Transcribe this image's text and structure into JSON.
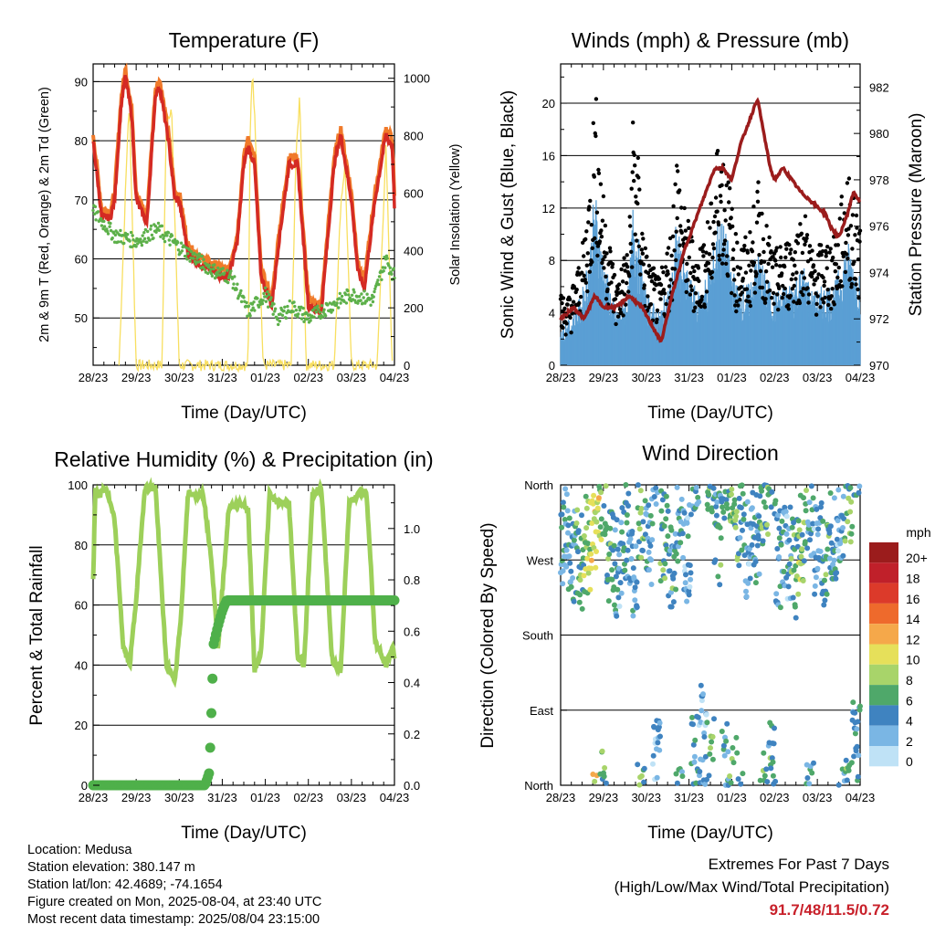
{
  "x_ticks": [
    "28/23",
    "29/23",
    "30/23",
    "31/23",
    "01/23",
    "02/23",
    "03/23",
    "04/23"
  ],
  "temperature": {
    "title": "Temperature (F)",
    "xlabel": "Time (Day/UTC)",
    "ylabel_left": "2m & 9m T (Red, Orange) & 2m Td (Green)",
    "ylabel_right": "Solar Insolation (Yellow)"
  },
  "winds": {
    "title": "Winds (mph) & Pressure (mb)",
    "xlabel": "Time (Day/UTC)",
    "ylabel_left": "Sonic Wind & Gust (Blue, Black)",
    "ylabel_right": "Station Pressure (Maroon)"
  },
  "humidity": {
    "title": "Relative Humidity (%) & Precipitation (in)",
    "xlabel": "Time (Day/UTC)",
    "ylabel_left": "Percent & Total Rainfall"
  },
  "direction": {
    "title": "Wind Direction",
    "xlabel": "Time (Day/UTC)",
    "ylabel_left": "Direction (Colored By Speed)",
    "y_labels": [
      "North",
      "West",
      "South",
      "East",
      "North"
    ],
    "colorbar_title": "mph",
    "colorbar_labels": [
      "20+",
      "18",
      "16",
      "14",
      "12",
      "10",
      "8",
      "6",
      "4",
      "2",
      "0"
    ],
    "colorbar_colors": [
      "#9b1c1c",
      "#c0202a",
      "#dc3a2a",
      "#ee6a2c",
      "#f5a84a",
      "#e6e05a",
      "#a8d46a",
      "#4fa86a",
      "#3f83c0",
      "#7ab6e4",
      "#bfe2f6"
    ]
  },
  "info": {
    "location": "Location: Medusa",
    "elevation": "Station elevation: 380.147 m",
    "latlon": "Station lat/lon: 42.4689; -74.1654",
    "created": "Figure created on Mon, 2025-08-04, at 23:40 UTC",
    "recent": "Most recent data timestamp: 2025/08/04 23:15:00"
  },
  "extremes": {
    "line1": "Extremes For Past 7 Days",
    "line2": "(High/Low/Max Wind/Total Precipitation)",
    "values": "91.7/48/11.5/0.72"
  },
  "colors": {
    "temp2m": "#d42a23",
    "temp9m": "#f07a2a",
    "dewpoint": "#5db04a",
    "solar": "#f8df60",
    "wind": "#5a9fd4",
    "gust": "#000000",
    "pressure": "#9b1c1c",
    "rh": "#9dd05a",
    "precip": "#4fb04a"
  },
  "chart_data": [
    {
      "type": "line",
      "title": "Temperature (F)",
      "xlabel": "Time (Day/UTC)",
      "ylabel": "2m & 9m T (Red, Orange) & 2m Td (Green)",
      "y2label": "Solar Insolation (Yellow)",
      "ylim": [
        42,
        93
      ],
      "y2lim": [
        0,
        1050
      ],
      "yticks": [
        50,
        60,
        70,
        80,
        90
      ],
      "y2ticks": [
        0,
        200,
        400,
        600,
        800,
        1000
      ],
      "series": [
        {
          "name": "2m & 9m T (Red, Orange)",
          "axis": "left",
          "x": [
            0,
            0.2,
            0.4,
            0.5,
            0.65,
            0.75,
            0.9,
            1.0,
            1.25,
            1.45,
            1.55,
            1.75,
            1.9,
            2.0,
            2.2,
            2.5,
            2.75,
            3.0,
            3.15,
            3.35,
            3.5,
            3.6,
            3.75,
            3.9,
            4.15,
            4.3,
            4.55,
            4.75,
            5.0,
            5.3,
            5.6,
            5.75,
            6.0,
            6.15,
            6.3,
            6.55,
            6.8,
            6.95,
            7.0
          ],
          "y": [
            80,
            67,
            67,
            70,
            86,
            91,
            84,
            70,
            66,
            88,
            89,
            80,
            70,
            70,
            61,
            59,
            58,
            57,
            57,
            63,
            76,
            79,
            76,
            57,
            52,
            62,
            76,
            76,
            52,
            51,
            76,
            81,
            70,
            58,
            55,
            70,
            81,
            79,
            69
          ]
        },
        {
          "name": "2m Td (Green)",
          "axis": "left",
          "x": [
            0,
            0.5,
            1.0,
            1.5,
            2.0,
            2.4,
            2.8,
            3.2,
            3.6,
            4.0,
            4.3,
            4.6,
            5.0,
            5.5,
            6.0,
            6.5,
            6.8,
            7.0
          ],
          "y": [
            68,
            64,
            63,
            65,
            62,
            60,
            58,
            57,
            51,
            54,
            50,
            52,
            50,
            52,
            54,
            53,
            60,
            57
          ]
        },
        {
          "name": "Solar Insolation (Yellow)",
          "axis": "right",
          "x": [
            0.6,
            0.82,
            0.85,
            1.0,
            1.6,
            1.7,
            1.82,
            2.0,
            2.6,
            3.0,
            3.2,
            3.4,
            3.6,
            3.65,
            3.7,
            3.8,
            3.95,
            4.6,
            4.7,
            4.8,
            4.95,
            5.6,
            5.75,
            5.85,
            6.0,
            6.6,
            6.8,
            6.95
          ],
          "y": [
            0,
            880,
            850,
            0,
            0,
            850,
            900,
            0,
            0,
            0,
            0,
            0,
            0,
            830,
            1040,
            700,
            0,
            0,
            680,
            950,
            0,
            0,
            560,
            700,
            0,
            0,
            760,
            0
          ]
        }
      ]
    },
    {
      "type": "scatter",
      "title": "Winds (mph) & Pressure (mb)",
      "xlabel": "Time (Day/UTC)",
      "ylabel": "Sonic Wind & Gust (Blue, Black)",
      "y2label": "Station Pressure (Maroon)",
      "ylim": [
        0,
        23
      ],
      "y2lim": [
        970,
        983
      ],
      "yticks": [
        0,
        4,
        8,
        12,
        16,
        20
      ],
      "y2ticks": [
        970,
        972,
        974,
        976,
        978,
        980,
        982
      ],
      "series": [
        {
          "name": "Station Pressure (Maroon)",
          "type": "line",
          "axis": "right",
          "x": [
            0,
            0.3,
            0.55,
            0.8,
            1.0,
            1.3,
            1.6,
            1.9,
            2.2,
            2.35,
            2.6,
            2.75,
            2.9,
            3.2,
            3.5,
            3.6,
            3.8,
            4.0,
            4.2,
            4.4,
            4.6,
            4.75,
            4.9,
            5.0,
            5.2,
            5.4,
            5.6,
            5.9,
            6.2,
            6.3,
            6.5,
            6.7,
            6.85,
            7.0
          ],
          "y": [
            972,
            972.5,
            972,
            973,
            972.5,
            972.5,
            973,
            972.5,
            971.5,
            971,
            973,
            974,
            975,
            976.5,
            978,
            978.5,
            978.5,
            978,
            979.5,
            980.5,
            981.5,
            980,
            978.5,
            978,
            978.5,
            978,
            977.5,
            977,
            976.5,
            976,
            975.5,
            976.5,
            977.5,
            977
          ]
        },
        {
          "name": "Sonic Wind & Gust (Blue, Black)",
          "type": "scatter",
          "axis": "left",
          "x": [
            0.2,
            0.5,
            0.7,
            0.8,
            1.0,
            1.3,
            1.6,
            1.7,
            1.85,
            2.0,
            2.3,
            2.6,
            2.7,
            2.9,
            3.2,
            3.5,
            3.7,
            3.9,
            4.1,
            4.4,
            4.6,
            4.8,
            5.0,
            5.3,
            5.5,
            5.7,
            5.9,
            6.2,
            6.4,
            6.7,
            6.9
          ],
          "y": [
            5,
            8,
            14,
            20,
            12,
            6,
            9,
            19,
            13,
            8,
            6,
            10,
            16,
            11,
            8,
            11,
            17,
            14,
            9,
            9,
            13,
            10,
            8,
            9,
            10,
            11,
            8,
            9,
            9,
            14,
            11
          ]
        }
      ]
    },
    {
      "type": "line",
      "title": "Relative Humidity (%) & Precipitation (in)",
      "xlabel": "Time (Day/UTC)",
      "ylabel": "Percent & Total Rainfall",
      "ylim": [
        0,
        100
      ],
      "y2lim": [
        0,
        1.17
      ],
      "yticks": [
        0,
        20,
        40,
        60,
        80,
        100
      ],
      "y2ticks": [
        0.0,
        0.2,
        0.4,
        0.6,
        0.8,
        1.0
      ],
      "series": [
        {
          "name": "Relative Humidity (%)",
          "axis": "left",
          "x": [
            0,
            0.05,
            0.15,
            0.3,
            0.5,
            0.7,
            0.85,
            1.0,
            1.2,
            1.45,
            1.7,
            1.9,
            2.05,
            2.2,
            2.4,
            2.55,
            2.75,
            2.9,
            3.15,
            3.4,
            3.6,
            3.75,
            3.9,
            4.1,
            4.3,
            4.55,
            4.75,
            4.9,
            5.1,
            5.3,
            5.55,
            5.75,
            5.95,
            6.15,
            6.35,
            6.55,
            6.8,
            6.95,
            7.0
          ],
          "y": [
            68,
            98,
            97,
            99,
            88,
            46,
            40,
            62,
            99,
            99,
            40,
            35,
            58,
            97,
            96,
            98,
            75,
            46,
            92,
            94,
            92,
            38,
            44,
            97,
            94,
            94,
            43,
            40,
            97,
            99,
            42,
            38,
            94,
            97,
            98,
            48,
            40,
            46,
            43
          ]
        },
        {
          "name": "Precipitation (in)",
          "axis": "right",
          "x": [
            0,
            2.6,
            2.7,
            2.75,
            2.8,
            2.9,
            3.0,
            3.1,
            3.3,
            3.5,
            4.0,
            5.0,
            6.0,
            7.0
          ],
          "y": [
            0,
            0,
            0.05,
            0.3,
            0.55,
            0.62,
            0.68,
            0.72,
            0.72,
            0.72,
            0.72,
            0.72,
            0.72,
            0.72
          ]
        }
      ]
    },
    {
      "type": "scatter",
      "title": "Wind Direction",
      "xlabel": "Time (Day/UTC)",
      "ylabel": "Direction (Colored By Speed)",
      "ylim": [
        0,
        360
      ],
      "ytick_labels": [
        "North",
        "East",
        "South",
        "West",
        "North"
      ],
      "series": [
        {
          "name": "Direction (Colored By Speed)",
          "x": [
            0.1,
            0.3,
            0.5,
            0.6,
            0.7,
            0.8,
            0.9,
            1.0,
            1.2,
            1.5,
            1.7,
            1.9,
            2.0,
            2.3,
            2.5,
            2.7,
            3.0,
            3.2,
            3.4,
            3.5,
            3.6,
            3.7,
            3.8,
            4.0,
            4.2,
            4.4,
            4.6,
            4.8,
            5.0,
            5.2,
            5.4,
            5.6,
            5.8,
            6.0,
            6.2,
            6.4,
            6.6,
            6.8,
            6.9
          ],
          "y": [
            300,
            280,
            270,
            290,
            320,
            345,
            280,
            260,
            300,
            250,
            330,
            290,
            20,
            300,
            270,
            320,
            280,
            30,
            60,
            20,
            300,
            15,
            5,
            320,
            280,
            300,
            340,
            20,
            270,
            280,
            260,
            300,
            330,
            280,
            260,
            300,
            320,
            340,
            40
          ],
          "speed": [
            3,
            4,
            6,
            8,
            10,
            7,
            5,
            3,
            5,
            3,
            6,
            4,
            3,
            6,
            5,
            4,
            3,
            4,
            2,
            6,
            5,
            4,
            7,
            5,
            3,
            4,
            6,
            5,
            4,
            3,
            6,
            7,
            4,
            3,
            5,
            4,
            3,
            6,
            4
          ]
        }
      ]
    }
  ]
}
